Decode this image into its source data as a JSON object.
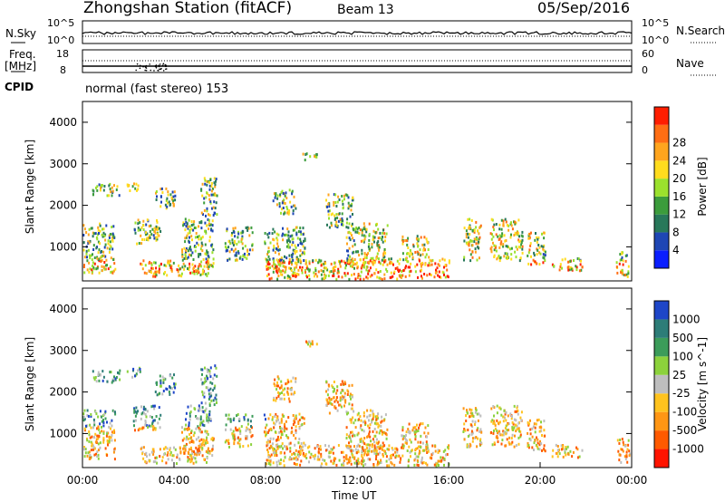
{
  "header": {
    "title": "Zhongshan Station (fitACF)",
    "beam": "Beam 13",
    "date": "05/Sep/2016"
  },
  "params": {
    "nsky_label": "N.Sky",
    "nsearch_label": "N.Search",
    "freq_label": "Freq.",
    "freq_unit": "[MHz]",
    "nave_label": "Nave",
    "cpid_label": "CPID",
    "cpid_text": "normal (fast stereo) 153",
    "noise_left_ticks": [
      "10^5",
      "10^0"
    ],
    "noise_right_ticks": [
      "10^5",
      "10^0"
    ],
    "freq_ticks": [
      "18",
      "8"
    ],
    "nave_ticks": [
      "60",
      "0"
    ]
  },
  "colors": {
    "power_scale": [
      "#0a1eff",
      "#1e46b4",
      "#28785a",
      "#3c9c3c",
      "#9be12d",
      "#ffdc1e",
      "#ffa51e",
      "#ff6e14",
      "#ff1e00"
    ],
    "velocity_scale": [
      "#ff1400",
      "#ff5a00",
      "#ff9614",
      "#ffc31e",
      "#bebebe",
      "#8cd23c",
      "#3c9c5a",
      "#2d7d78",
      "#1e46c8"
    ]
  },
  "chart_data": [
    {
      "type": "heatmap",
      "panel": "power",
      "ylabel": "Slant Range [km]",
      "ylim": [
        180,
        4500
      ],
      "yticks": [
        "1000",
        "2000",
        "3000",
        "4000"
      ],
      "xlim": [
        0,
        24
      ],
      "colorbar_label": "Power [dB]",
      "colorbar_ticks": [
        "4",
        "8",
        "12",
        "16",
        "20",
        "24",
        "28"
      ]
    },
    {
      "type": "heatmap",
      "panel": "velocity",
      "ylabel": "Slant Range [km]",
      "ylim": [
        180,
        4500
      ],
      "yticks": [
        "1000",
        "2000",
        "3000",
        "4000"
      ],
      "xlim": [
        0,
        24
      ],
      "xticks": [
        "00:00",
        "04:00",
        "08:00",
        "12:00",
        "16:00",
        "20:00",
        "00:00"
      ],
      "xlabel": "Time UT",
      "colorbar_label": "Velocity [m s^-1]",
      "colorbar_ticks": [
        "1000",
        "500",
        "100",
        "25",
        "-25",
        "-100",
        "-500",
        "-1000"
      ]
    }
  ]
}
